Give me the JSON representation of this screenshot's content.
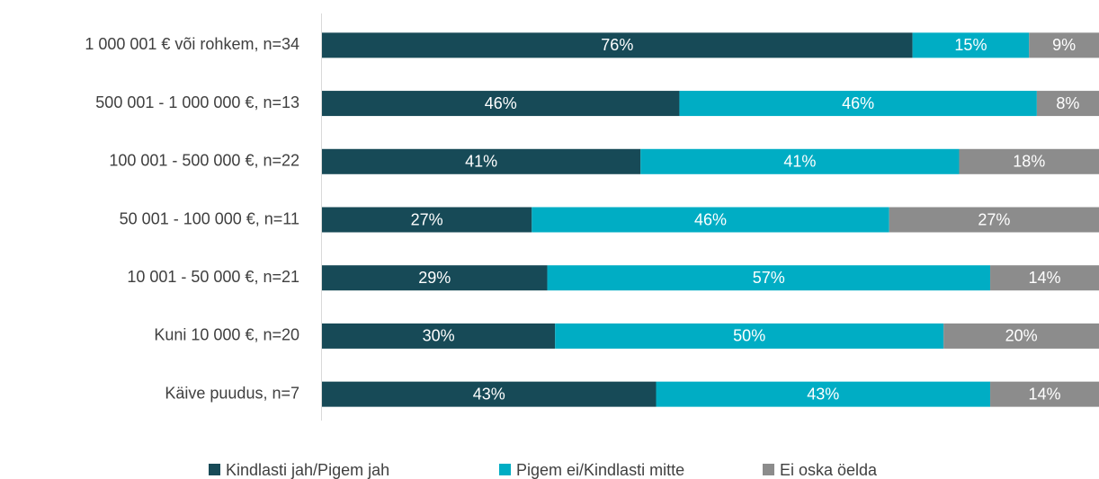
{
  "chart_data": {
    "type": "stacked-bar-horizontal",
    "categories": [
      "1 000 001 € või rohkem, n=34",
      "500 001 - 1 000 000 €, n=13",
      "100 001 - 500 000 €, n=22",
      "50 001 - 100 000 €, n=11",
      "10 001 - 50 000 €, n=21",
      "Kuni 10 000 €, n=20",
      "Käive puudus, n=7"
    ],
    "series": [
      {
        "name": "Kindlasti jah/Pigem jah",
        "color": "#174a57",
        "values": [
          76,
          46,
          41,
          27,
          29,
          30,
          43
        ],
        "value_labels": [
          "76%",
          "46%",
          "41%",
          "27%",
          "29%",
          "30%",
          "43%"
        ]
      },
      {
        "name": "Pigem ei/Kindlasti mitte",
        "color": "#00adc4",
        "values": [
          15,
          46,
          41,
          46,
          57,
          50,
          43
        ],
        "value_labels": [
          "15%",
          "46%",
          "41%",
          "46%",
          "57%",
          "50%",
          "43%"
        ]
      },
      {
        "name": "Ei oska öelda",
        "color": "#8c8c8c",
        "values": [
          9,
          8,
          18,
          27,
          14,
          20,
          14
        ],
        "value_labels": [
          "9%",
          "8%",
          "18%",
          "27%",
          "14%",
          "20%",
          "14%"
        ]
      }
    ],
    "xlim": [
      0,
      100
    ],
    "legend": "bottom"
  }
}
